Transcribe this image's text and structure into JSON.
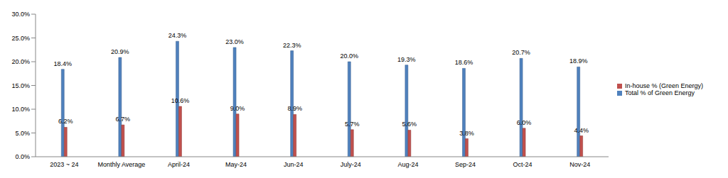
{
  "chart_data": {
    "type": "bar",
    "categories": [
      "2023 ~ 24",
      "Monthly Average",
      "April-24",
      "May-24",
      "Jun-24",
      "July-24",
      "Aug-24",
      "Sep-24",
      "Oct-24",
      "Nov-24"
    ],
    "series": [
      {
        "name": "Total % of Green Energy",
        "color": "#4f81bd",
        "values": [
          18.4,
          20.9,
          24.3,
          23.0,
          22.3,
          20.0,
          19.3,
          18.6,
          20.7,
          18.9
        ],
        "value_labels": [
          "18.4%",
          "20.9%",
          "24.3%",
          "23.0%",
          "22.3%",
          "20.0%",
          "19.3%",
          "18.6%",
          "20.7%",
          "18.9%"
        ]
      },
      {
        "name": "In-house % (Green Energy)",
        "color": "#c0504d",
        "values": [
          6.2,
          6.7,
          10.6,
          9.0,
          8.9,
          5.7,
          5.6,
          3.8,
          6.0,
          4.4
        ],
        "value_labels": [
          "6.2%",
          "6.7%",
          "10.6%",
          "9.0%",
          "8.9%",
          "5.7%",
          "5.6%",
          "3.8%",
          "6.0%",
          "4.4%"
        ]
      }
    ],
    "ylim": [
      0,
      30
    ],
    "yticks": [
      {
        "value": 0,
        "label": "0.0%"
      },
      {
        "value": 5,
        "label": "5.0%"
      },
      {
        "value": 10,
        "label": "10.0%"
      },
      {
        "value": 15,
        "label": "15.0%"
      },
      {
        "value": 20,
        "label": "20.0%"
      },
      {
        "value": 25,
        "label": "25.0%"
      },
      {
        "value": 30,
        "label": "30.0%"
      }
    ],
    "grid": false,
    "legend": "right",
    "data_labels": true
  }
}
